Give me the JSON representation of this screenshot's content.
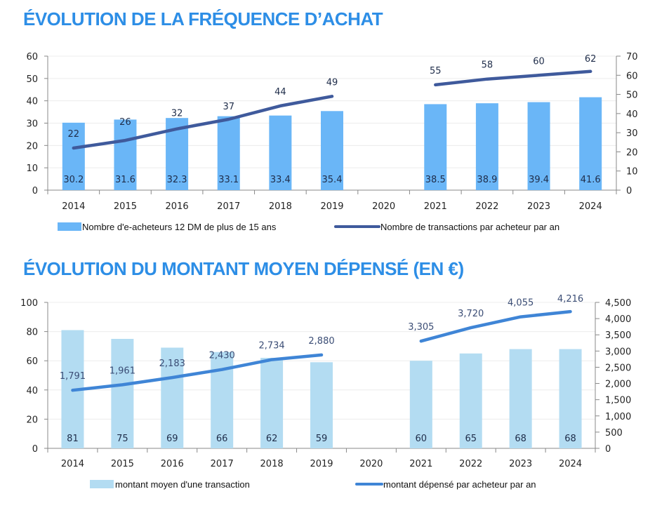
{
  "chart_data": [
    {
      "type": "bar",
      "title": "ÉVOLUTION DE LA FRÉQUENCE D’ACHAT",
      "categories": [
        "2014",
        "2015",
        "2016",
        "2017",
        "2018",
        "2019",
        "2020",
        "2021",
        "2022",
        "2023",
        "2024"
      ],
      "series": [
        {
          "name": "Nombre d'e-acheteurs 12 DM de plus de 15 ans",
          "type": "bar",
          "axis": "left",
          "values": [
            30.2,
            31.6,
            32.3,
            33.1,
            33.4,
            35.4,
            null,
            38.5,
            38.9,
            39.4,
            41.6
          ],
          "labels": [
            "30.2",
            "31.6",
            "32.3",
            "33.1",
            "33.4",
            "35.4",
            "",
            "38.5",
            "38.9",
            "39.4",
            "41.6"
          ],
          "color": "#6ab6f7"
        },
        {
          "name": "Nombre de transactions par acheteur par an",
          "type": "line",
          "axis": "right",
          "values": [
            22,
            26,
            32,
            37,
            44,
            49,
            null,
            55,
            58,
            60,
            62
          ],
          "labels": [
            "22",
            "26",
            "32",
            "37",
            "44",
            "49",
            "",
            "55",
            "58",
            "60",
            "62"
          ],
          "color": "#3f5a9c"
        }
      ],
      "y_left": {
        "range": [
          0,
          60
        ],
        "ticks": [
          "0",
          "10",
          "20",
          "30",
          "40",
          "50",
          "60"
        ]
      },
      "y_right": {
        "range": [
          0,
          70
        ],
        "ticks": [
          "0",
          "10",
          "20",
          "30",
          "40",
          "50",
          "60",
          "70"
        ]
      },
      "grid": true,
      "legend": "bottom"
    },
    {
      "type": "bar",
      "title": "ÉVOLUTION DU MONTANT MOYEN DÉPENSÉ (EN €)",
      "categories": [
        "2014",
        "2015",
        "2016",
        "2017",
        "2018",
        "2019",
        "2020",
        "2021",
        "2022",
        "2023",
        "2024"
      ],
      "series": [
        {
          "name": "montant moyen d'une transaction",
          "type": "bar",
          "axis": "left",
          "values": [
            81,
            75,
            69,
            66,
            62,
            59,
            null,
            60,
            65,
            68,
            68
          ],
          "labels": [
            "81",
            "75",
            "69",
            "66",
            "62",
            "59",
            "",
            "60",
            "65",
            "68",
            "68"
          ],
          "color": "#b3dcf2"
        },
        {
          "name": "montant dépensé par acheteur par an",
          "type": "line",
          "axis": "right",
          "values": [
            1791,
            1961,
            2183,
            2430,
            2734,
            2880,
            null,
            3305,
            3720,
            4055,
            4216
          ],
          "labels": [
            "1,791",
            "1,961",
            "2,183",
            "2,430",
            "2,734",
            "2,880",
            "",
            "3,305",
            "3,720",
            "4,055",
            "4,216"
          ],
          "color": "#3f85d6"
        }
      ],
      "y_left": {
        "range": [
          0,
          100
        ],
        "ticks": [
          "0",
          "20",
          "40",
          "60",
          "80",
          "100"
        ]
      },
      "y_right": {
        "range": [
          0,
          4500
        ],
        "ticks": [
          "0",
          "500",
          "1,000",
          "1,500",
          "2,000",
          "2,500",
          "3,000",
          "3,500",
          "4,000",
          "4,500"
        ]
      },
      "grid": true,
      "legend": "bottom"
    }
  ]
}
